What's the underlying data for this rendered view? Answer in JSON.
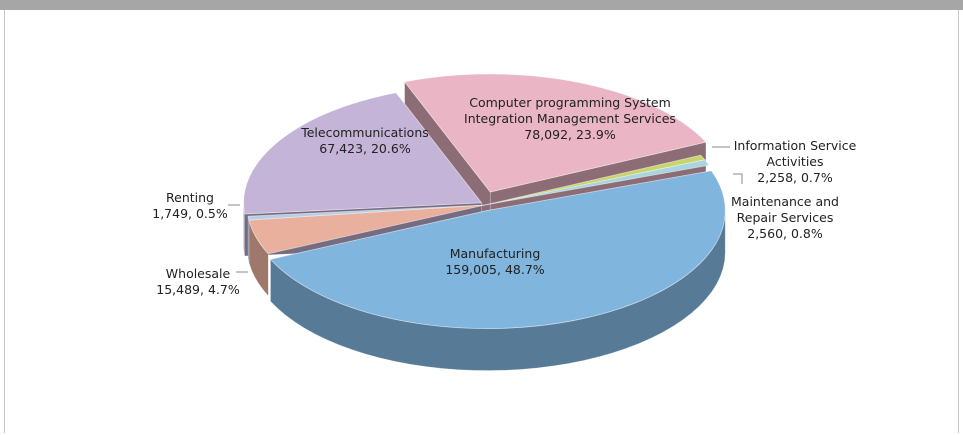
{
  "chart_data": {
    "type": "pie",
    "categories": [
      "Information Service Activities",
      "Maintenance and Repair Services",
      "Manufacturing",
      "Wholesale",
      "Renting",
      "Telecommunications",
      "Computer programming System Integration Management Services"
    ],
    "values": [
      2258,
      2560,
      159005,
      15489,
      1749,
      67423,
      78092
    ],
    "value_labels": [
      "2,258, 0.7%",
      "2,560, 0.8%",
      "159,005, 48.7%",
      "15,489, 4.7%",
      "1,749, 0.5%",
      "67,423, 20.6%",
      "78,092, 23.9%"
    ],
    "colors": [
      "#c9d46b",
      "#a9d5de",
      "#80b5de",
      "#e9b19d",
      "#b9cde5",
      "#c4b4d7",
      "#eab5c4"
    ]
  }
}
